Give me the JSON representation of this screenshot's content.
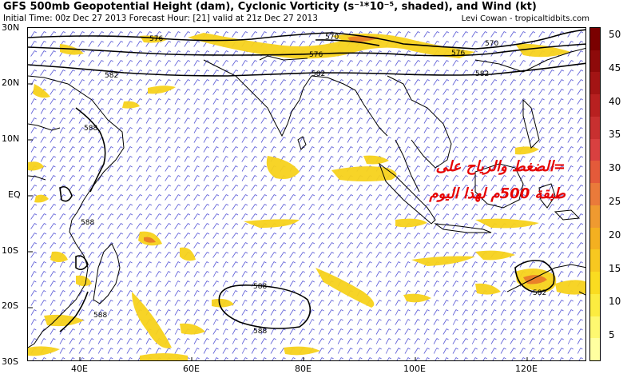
{
  "header": {
    "title": "GFS 500mb Geopotential Height (dam), Cyclonic Vorticity (s⁻¹*10⁻⁵, shaded), and Wind (kt)",
    "subtitle": "Initial Time: 00z Dec 27 2013 Forecast Hour: [21] valid at 21z Dec 27 2013",
    "credit": "Levi Cowan - tropicaltidbits.com"
  },
  "axes": {
    "lat_labels": [
      "30N",
      "20N",
      "10N",
      "EQ",
      "10S",
      "20S",
      "30S"
    ],
    "lon_labels": [
      "40E",
      "60E",
      "80E",
      "100E",
      "120E"
    ]
  },
  "colorbar": {
    "labels": [
      "50",
      "45",
      "40",
      "35",
      "30",
      "25",
      "20",
      "15",
      "10",
      "5"
    ],
    "colors": [
      "#7a0000",
      "#8e0a0a",
      "#a31414",
      "#b82020",
      "#c83030",
      "#d94040",
      "#e45a3a",
      "#ea7a3a",
      "#ef9a30",
      "#f4b020",
      "#f7c820",
      "#fadc20",
      "#fcec40",
      "#fef870",
      "#ffffa0"
    ]
  },
  "contours": {
    "labels": [
      "576",
      "570",
      "576",
      "570",
      "576",
      "582",
      "582",
      "582",
      "588",
      "588",
      "588",
      "588",
      "588",
      "582"
    ]
  },
  "annotation": {
    "line1": "=الضغط والرياح على",
    "line2": "طبقة 500م لهذا اليوم"
  },
  "colors": {
    "shade": "#f7d21c",
    "shade_dark": "#e8782a",
    "barb": "#5a5ad6",
    "coast": "#000000",
    "annotation": "#e60000"
  }
}
